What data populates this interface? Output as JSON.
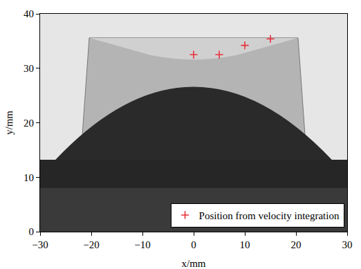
{
  "chart_data": {
    "type": "scatter",
    "x_label": "x/mm",
    "y_label": "y/mm",
    "series": [
      {
        "name": "Position from velocity integration",
        "color": "#e8303a",
        "marker": "+",
        "x": [
          0,
          5,
          10,
          15
        ],
        "values": [
          32.5,
          32.5,
          34.2,
          35.4
        ]
      }
    ],
    "xlim": [
      -30,
      30
    ],
    "xticks": [
      -30,
      -20,
      -10,
      0,
      10,
      20,
      30
    ],
    "ylim": [
      0,
      40
    ],
    "yticks": [
      0,
      10,
      20,
      30,
      40
    ],
    "grid": false,
    "legend": "bottom right"
  }
}
